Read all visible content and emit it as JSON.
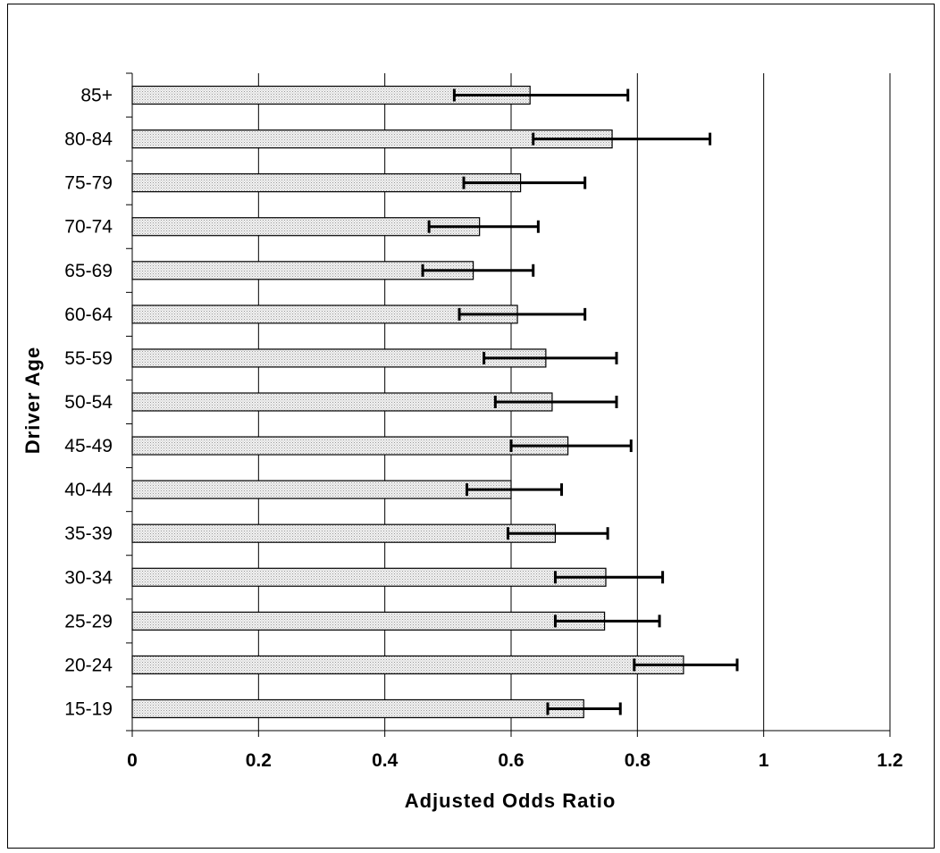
{
  "chart_data": {
    "type": "bar",
    "orientation": "horizontal",
    "title": "",
    "xlabel": "Adjusted Odds Ratio",
    "ylabel": "Driver Age",
    "xlim": [
      0,
      1.2
    ],
    "x_ticks": [
      "0",
      "0.2",
      "0.4",
      "0.6",
      "0.8",
      "1",
      "1.2"
    ],
    "grid": "vertical gridlines",
    "legend": "none",
    "bar_fill": "dotted light gray",
    "categories": [
      "85+",
      "80-84",
      "75-79",
      "70-74",
      "65-69",
      "60-64",
      "55-59",
      "50-54",
      "45-49",
      "40-44",
      "35-39",
      "30-34",
      "25-29",
      "20-24",
      "15-19"
    ],
    "values": [
      0.63,
      0.76,
      0.615,
      0.55,
      0.54,
      0.61,
      0.655,
      0.665,
      0.69,
      0.6,
      0.67,
      0.75,
      0.748,
      0.873,
      0.715
    ],
    "error_lower": [
      0.51,
      0.635,
      0.525,
      0.47,
      0.46,
      0.518,
      0.557,
      0.575,
      0.6,
      0.53,
      0.595,
      0.67,
      0.67,
      0.795,
      0.658
    ],
    "error_upper": [
      0.785,
      0.915,
      0.717,
      0.643,
      0.635,
      0.717,
      0.767,
      0.767,
      0.79,
      0.68,
      0.753,
      0.84,
      0.835,
      0.958,
      0.773
    ]
  }
}
